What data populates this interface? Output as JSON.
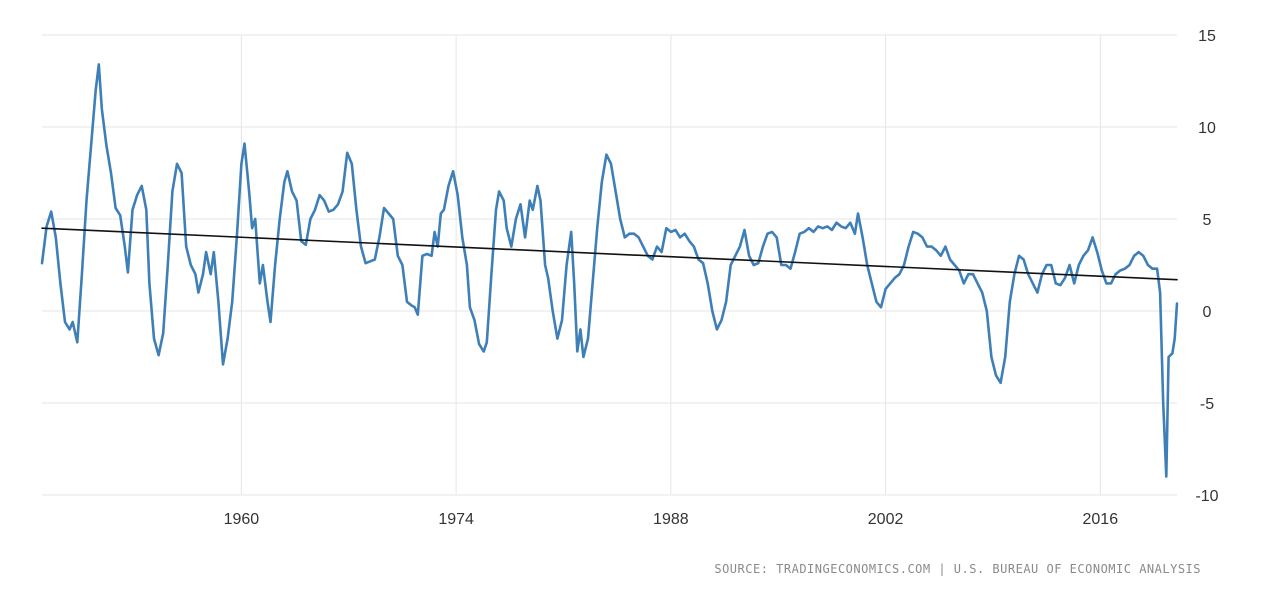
{
  "chart_data": {
    "type": "line",
    "title": "",
    "xlabel": "",
    "ylabel": "",
    "xlim": [
      1947.0,
      2021.0
    ],
    "ylim": [
      -10,
      15
    ],
    "x_ticks": [
      1960,
      1974,
      1988,
      2002,
      2016
    ],
    "y_ticks": [
      15,
      10,
      5,
      0,
      -5,
      -10
    ],
    "grid": true,
    "legend": "none",
    "series": [
      {
        "color": "#3e7fb8",
        "points": [
          [
            1947.0,
            2.6
          ],
          [
            1947.3,
            4.6
          ],
          [
            1947.6,
            5.4
          ],
          [
            1947.9,
            4.0
          ],
          [
            1948.2,
            1.5
          ],
          [
            1948.5,
            -0.6
          ],
          [
            1948.8,
            -1.0
          ],
          [
            1949.0,
            -0.6
          ],
          [
            1949.3,
            -1.7
          ],
          [
            1949.6,
            2.0
          ],
          [
            1949.9,
            6.0
          ],
          [
            1950.2,
            9.0
          ],
          [
            1950.5,
            12.0
          ],
          [
            1950.7,
            13.4
          ],
          [
            1950.9,
            11.0
          ],
          [
            1951.2,
            9.0
          ],
          [
            1951.5,
            7.5
          ],
          [
            1951.8,
            5.6
          ],
          [
            1952.1,
            5.2
          ],
          [
            1952.4,
            3.5
          ],
          [
            1952.6,
            2.1
          ],
          [
            1952.9,
            5.5
          ],
          [
            1953.2,
            6.3
          ],
          [
            1953.5,
            6.8
          ],
          [
            1953.8,
            5.5
          ],
          [
            1954.0,
            1.5
          ],
          [
            1954.3,
            -1.5
          ],
          [
            1954.6,
            -2.4
          ],
          [
            1954.9,
            -1.2
          ],
          [
            1955.2,
            2.5
          ],
          [
            1955.5,
            6.5
          ],
          [
            1955.8,
            8.0
          ],
          [
            1956.1,
            7.5
          ],
          [
            1956.4,
            3.5
          ],
          [
            1956.7,
            2.5
          ],
          [
            1957.0,
            2.0
          ],
          [
            1957.2,
            1.0
          ],
          [
            1957.5,
            2.0
          ],
          [
            1957.7,
            3.2
          ],
          [
            1958.0,
            2.0
          ],
          [
            1958.2,
            3.2
          ],
          [
            1958.5,
            0.5
          ],
          [
            1958.8,
            -2.9
          ],
          [
            1959.1,
            -1.5
          ],
          [
            1959.4,
            0.5
          ],
          [
            1959.7,
            4.0
          ],
          [
            1960.0,
            8.0
          ],
          [
            1960.2,
            9.1
          ],
          [
            1960.5,
            6.5
          ],
          [
            1960.7,
            4.5
          ],
          [
            1960.9,
            5.0
          ],
          [
            1961.2,
            1.5
          ],
          [
            1961.4,
            2.5
          ],
          [
            1961.7,
            0.5
          ],
          [
            1961.9,
            -0.6
          ],
          [
            1962.2,
            2.5
          ],
          [
            1962.5,
            5.0
          ],
          [
            1962.8,
            7.0
          ],
          [
            1963.0,
            7.6
          ],
          [
            1963.3,
            6.5
          ],
          [
            1963.6,
            6.0
          ],
          [
            1963.9,
            3.8
          ],
          [
            1964.2,
            3.6
          ],
          [
            1964.5,
            5.0
          ],
          [
            1964.8,
            5.5
          ],
          [
            1965.1,
            6.3
          ],
          [
            1965.4,
            6.0
          ],
          [
            1965.7,
            5.4
          ],
          [
            1966.0,
            5.5
          ],
          [
            1966.3,
            5.8
          ],
          [
            1966.6,
            6.5
          ],
          [
            1966.9,
            8.6
          ],
          [
            1967.2,
            8.0
          ],
          [
            1967.5,
            5.5
          ],
          [
            1967.8,
            3.5
          ],
          [
            1968.1,
            2.6
          ],
          [
            1968.4,
            2.7
          ],
          [
            1968.7,
            2.8
          ],
          [
            1969.0,
            4.0
          ],
          [
            1969.3,
            5.6
          ],
          [
            1969.6,
            5.3
          ],
          [
            1969.9,
            5.0
          ],
          [
            1970.2,
            3.0
          ],
          [
            1970.5,
            2.5
          ],
          [
            1970.8,
            0.5
          ],
          [
            1971.1,
            0.3
          ],
          [
            1971.3,
            0.2
          ],
          [
            1971.5,
            -0.2
          ],
          [
            1971.8,
            3.0
          ],
          [
            1972.1,
            3.1
          ],
          [
            1972.4,
            3.0
          ],
          [
            1972.6,
            4.3
          ],
          [
            1972.8,
            3.5
          ],
          [
            1973.0,
            5.3
          ],
          [
            1973.2,
            5.5
          ],
          [
            1973.5,
            6.8
          ],
          [
            1973.8,
            7.6
          ],
          [
            1974.1,
            6.3
          ],
          [
            1974.4,
            4.0
          ],
          [
            1974.7,
            2.5
          ],
          [
            1974.9,
            0.2
          ],
          [
            1975.2,
            -0.5
          ],
          [
            1975.5,
            -1.8
          ],
          [
            1975.8,
            -2.2
          ],
          [
            1976.0,
            -1.7
          ],
          [
            1976.3,
            2.0
          ],
          [
            1976.6,
            5.5
          ],
          [
            1976.8,
            6.5
          ],
          [
            1977.1,
            6.0
          ],
          [
            1977.3,
            4.5
          ],
          [
            1977.6,
            3.5
          ],
          [
            1977.9,
            5.0
          ],
          [
            1978.2,
            5.8
          ],
          [
            1978.5,
            4.0
          ],
          [
            1978.8,
            6.0
          ],
          [
            1979.0,
            5.5
          ],
          [
            1979.3,
            6.8
          ],
          [
            1979.5,
            6.0
          ],
          [
            1979.8,
            2.5
          ],
          [
            1980.0,
            1.8
          ],
          [
            1980.3,
            0.0
          ],
          [
            1980.6,
            -1.5
          ],
          [
            1980.9,
            -0.5
          ],
          [
            1981.2,
            2.5
          ],
          [
            1981.5,
            4.3
          ],
          [
            1981.7,
            1.5
          ],
          [
            1981.9,
            -2.2
          ],
          [
            1982.1,
            -1.0
          ],
          [
            1982.3,
            -2.5
          ],
          [
            1982.6,
            -1.5
          ],
          [
            1982.9,
            1.5
          ],
          [
            1983.2,
            4.5
          ],
          [
            1983.5,
            7.0
          ],
          [
            1983.8,
            8.5
          ],
          [
            1984.1,
            8.0
          ],
          [
            1984.4,
            6.5
          ],
          [
            1984.7,
            5.0
          ],
          [
            1985.0,
            4.0
          ],
          [
            1985.3,
            4.2
          ],
          [
            1985.6,
            4.2
          ],
          [
            1985.9,
            4.0
          ],
          [
            1986.2,
            3.5
          ],
          [
            1986.5,
            3.0
          ],
          [
            1986.8,
            2.8
          ],
          [
            1987.1,
            3.5
          ],
          [
            1987.4,
            3.2
          ],
          [
            1987.7,
            4.5
          ],
          [
            1988.0,
            4.3
          ],
          [
            1988.3,
            4.4
          ],
          [
            1988.6,
            4.0
          ],
          [
            1988.9,
            4.2
          ],
          [
            1989.2,
            3.8
          ],
          [
            1989.5,
            3.5
          ],
          [
            1989.8,
            2.8
          ],
          [
            1990.1,
            2.6
          ],
          [
            1990.4,
            1.5
          ],
          [
            1990.7,
            0.0
          ],
          [
            1991.0,
            -1.0
          ],
          [
            1991.3,
            -0.5
          ],
          [
            1991.6,
            0.5
          ],
          [
            1991.9,
            2.5
          ],
          [
            1992.2,
            3.0
          ],
          [
            1992.5,
            3.5
          ],
          [
            1992.8,
            4.4
          ],
          [
            1993.1,
            3.0
          ],
          [
            1993.4,
            2.5
          ],
          [
            1993.7,
            2.6
          ],
          [
            1994.0,
            3.5
          ],
          [
            1994.3,
            4.2
          ],
          [
            1994.6,
            4.3
          ],
          [
            1994.9,
            4.0
          ],
          [
            1995.2,
            2.5
          ],
          [
            1995.5,
            2.5
          ],
          [
            1995.8,
            2.3
          ],
          [
            1996.1,
            3.2
          ],
          [
            1996.4,
            4.2
          ],
          [
            1996.7,
            4.3
          ],
          [
            1997.0,
            4.5
          ],
          [
            1997.3,
            4.3
          ],
          [
            1997.6,
            4.6
          ],
          [
            1997.9,
            4.5
          ],
          [
            1998.2,
            4.6
          ],
          [
            1998.5,
            4.4
          ],
          [
            1998.8,
            4.8
          ],
          [
            1999.1,
            4.6
          ],
          [
            1999.4,
            4.5
          ],
          [
            1999.7,
            4.8
          ],
          [
            2000.0,
            4.2
          ],
          [
            2000.2,
            5.3
          ],
          [
            2000.5,
            4.0
          ],
          [
            2000.8,
            2.5
          ],
          [
            2001.1,
            1.5
          ],
          [
            2001.4,
            0.5
          ],
          [
            2001.7,
            0.2
          ],
          [
            2002.0,
            1.2
          ],
          [
            2002.3,
            1.5
          ],
          [
            2002.6,
            1.8
          ],
          [
            2002.9,
            2.0
          ],
          [
            2003.2,
            2.5
          ],
          [
            2003.5,
            3.5
          ],
          [
            2003.8,
            4.3
          ],
          [
            2004.1,
            4.2
          ],
          [
            2004.4,
            4.0
          ],
          [
            2004.7,
            3.5
          ],
          [
            2005.0,
            3.5
          ],
          [
            2005.3,
            3.3
          ],
          [
            2005.6,
            3.0
          ],
          [
            2005.9,
            3.5
          ],
          [
            2006.2,
            2.8
          ],
          [
            2006.5,
            2.5
          ],
          [
            2006.8,
            2.2
          ],
          [
            2007.1,
            1.5
          ],
          [
            2007.4,
            2.0
          ],
          [
            2007.7,
            2.0
          ],
          [
            2008.0,
            1.5
          ],
          [
            2008.3,
            1.0
          ],
          [
            2008.6,
            0.0
          ],
          [
            2008.9,
            -2.5
          ],
          [
            2009.2,
            -3.5
          ],
          [
            2009.5,
            -3.9
          ],
          [
            2009.8,
            -2.5
          ],
          [
            2010.1,
            0.5
          ],
          [
            2010.4,
            2.0
          ],
          [
            2010.7,
            3.0
          ],
          [
            2011.0,
            2.8
          ],
          [
            2011.3,
            2.0
          ],
          [
            2011.6,
            1.5
          ],
          [
            2011.9,
            1.0
          ],
          [
            2012.2,
            2.0
          ],
          [
            2012.5,
            2.5
          ],
          [
            2012.8,
            2.5
          ],
          [
            2013.1,
            1.5
          ],
          [
            2013.4,
            1.4
          ],
          [
            2013.7,
            1.8
          ],
          [
            2014.0,
            2.5
          ],
          [
            2014.3,
            1.5
          ],
          [
            2014.6,
            2.5
          ],
          [
            2014.9,
            3.0
          ],
          [
            2015.2,
            3.3
          ],
          [
            2015.5,
            4.0
          ],
          [
            2015.8,
            3.2
          ],
          [
            2016.1,
            2.2
          ],
          [
            2016.4,
            1.5
          ],
          [
            2016.7,
            1.5
          ],
          [
            2017.0,
            2.0
          ],
          [
            2017.3,
            2.2
          ],
          [
            2017.6,
            2.3
          ],
          [
            2017.9,
            2.5
          ],
          [
            2018.2,
            3.0
          ],
          [
            2018.5,
            3.2
          ],
          [
            2018.8,
            3.0
          ],
          [
            2019.1,
            2.5
          ],
          [
            2019.4,
            2.3
          ],
          [
            2019.7,
            2.3
          ],
          [
            2019.9,
            1.0
          ],
          [
            2020.1,
            -5.0
          ],
          [
            2020.3,
            -9.0
          ],
          [
            2020.45,
            -2.5
          ],
          [
            2020.7,
            -2.3
          ],
          [
            2020.85,
            -1.5
          ],
          [
            2021.0,
            0.4
          ]
        ]
      },
      {
        "color": "#111111",
        "points": [
          [
            1947.0,
            4.5
          ],
          [
            2021.0,
            1.7
          ]
        ]
      }
    ],
    "annotations": {
      "source": "SOURCE: TRADINGECONOMICS.COM | U.S. BUREAU OF ECONOMIC ANALYSIS"
    }
  }
}
